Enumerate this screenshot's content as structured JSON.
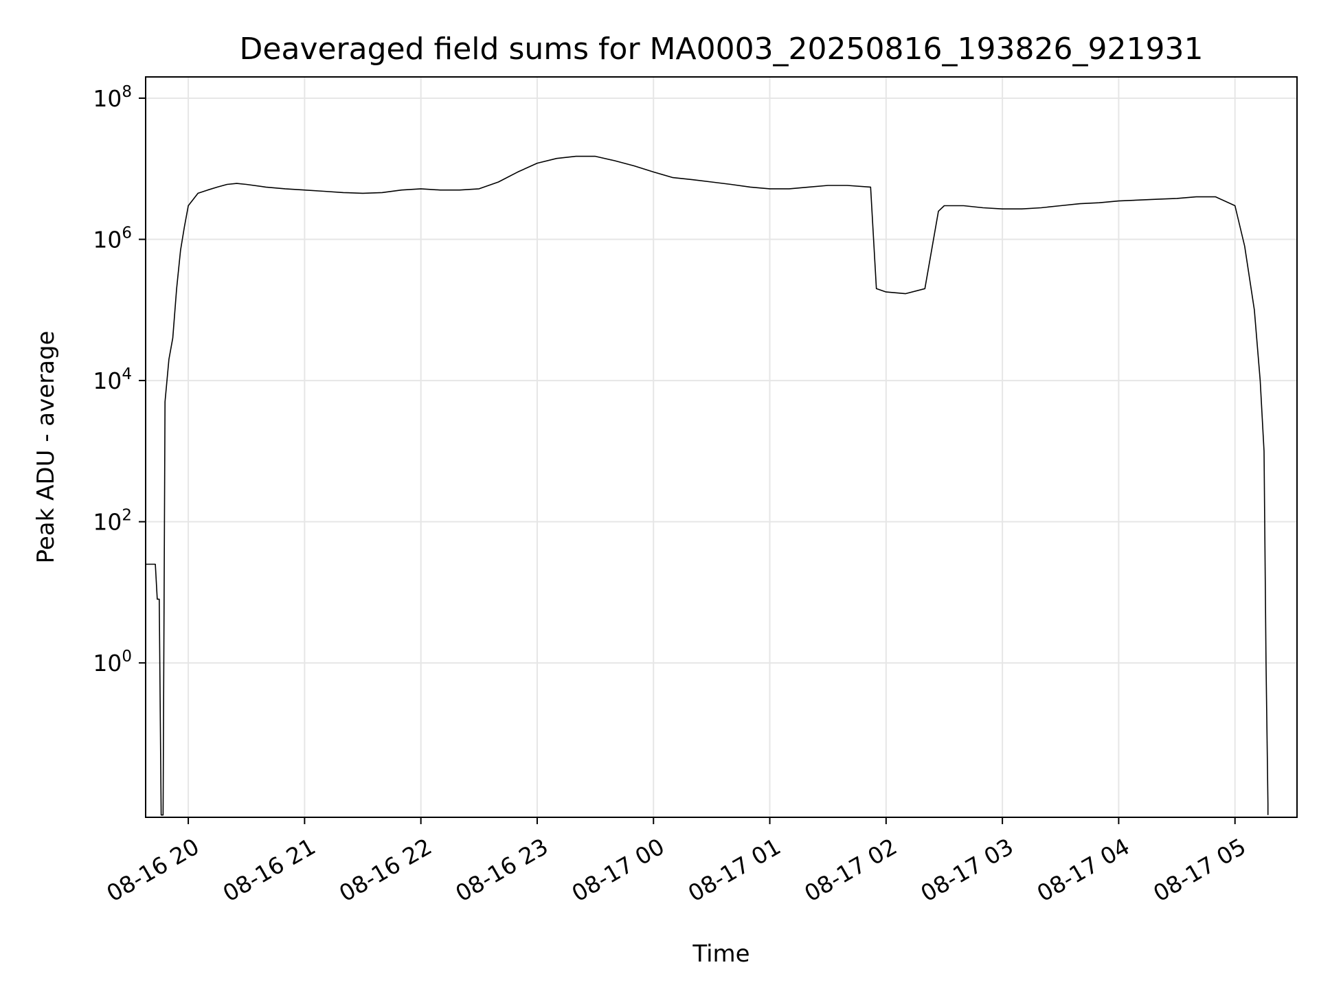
{
  "chart_data": {
    "type": "line",
    "title": "Deaveraged field sums for MA0003_20250816_193826_921931",
    "xlabel": "Time",
    "ylabel": "Peak ADU - average",
    "yscale": "log",
    "ylim": [
      0.0065,
      200000000.0
    ],
    "xlim": [
      "2025-08-16 19:38",
      "2025-08-17 05:32"
    ],
    "grid": true,
    "line_color": "#000000",
    "grid_color": "#e6e6e6",
    "x_ticks": [
      {
        "t": "2025-08-16 20:00",
        "label": "08-16 20"
      },
      {
        "t": "2025-08-16 21:00",
        "label": "08-16 21"
      },
      {
        "t": "2025-08-16 22:00",
        "label": "08-16 22"
      },
      {
        "t": "2025-08-16 23:00",
        "label": "08-16 23"
      },
      {
        "t": "2025-08-17 00:00",
        "label": "08-17 00"
      },
      {
        "t": "2025-08-17 01:00",
        "label": "08-17 01"
      },
      {
        "t": "2025-08-17 02:00",
        "label": "08-17 02"
      },
      {
        "t": "2025-08-17 03:00",
        "label": "08-17 03"
      },
      {
        "t": "2025-08-17 04:00",
        "label": "08-17 04"
      },
      {
        "t": "2025-08-17 05:00",
        "label": "08-17 05"
      }
    ],
    "y_ticks": [
      {
        "value": 1,
        "base": "10",
        "exp": "0"
      },
      {
        "value": 100,
        "base": "10",
        "exp": "2"
      },
      {
        "value": 10000,
        "base": "10",
        "exp": "4"
      },
      {
        "value": 1000000,
        "base": "10",
        "exp": "6"
      },
      {
        "value": 100000000,
        "base": "10",
        "exp": "8"
      }
    ],
    "series": [
      {
        "x": [
          "2025-08-16 19:38",
          "2025-08-16 19:42",
          "2025-08-16 19:43",
          "2025-08-16 19:44",
          "2025-08-16 19:45",
          "2025-08-16 19:46",
          "2025-08-16 19:47",
          "2025-08-16 19:48",
          "2025-08-16 19:50",
          "2025-08-16 19:52",
          "2025-08-16 19:54",
          "2025-08-16 19:56",
          "2025-08-16 19:58",
          "2025-08-16 20:00",
          "2025-08-16 20:05",
          "2025-08-16 20:10",
          "2025-08-16 20:15",
          "2025-08-16 20:20",
          "2025-08-16 20:25",
          "2025-08-16 20:30",
          "2025-08-16 20:40",
          "2025-08-16 20:50",
          "2025-08-16 21:00",
          "2025-08-16 21:10",
          "2025-08-16 21:20",
          "2025-08-16 21:30",
          "2025-08-16 21:40",
          "2025-08-16 21:50",
          "2025-08-16 22:00",
          "2025-08-16 22:10",
          "2025-08-16 22:20",
          "2025-08-16 22:30",
          "2025-08-16 22:40",
          "2025-08-16 22:50",
          "2025-08-16 23:00",
          "2025-08-16 23:10",
          "2025-08-16 23:20",
          "2025-08-16 23:30",
          "2025-08-16 23:40",
          "2025-08-16 23:50",
          "2025-08-17 00:00",
          "2025-08-17 00:10",
          "2025-08-17 00:20",
          "2025-08-17 00:30",
          "2025-08-17 00:40",
          "2025-08-17 00:50",
          "2025-08-17 01:00",
          "2025-08-17 01:10",
          "2025-08-17 01:20",
          "2025-08-17 01:30",
          "2025-08-17 01:40",
          "2025-08-17 01:52",
          "2025-08-17 01:55",
          "2025-08-17 02:00",
          "2025-08-17 02:10",
          "2025-08-17 02:20",
          "2025-08-17 02:27",
          "2025-08-17 02:30",
          "2025-08-17 02:40",
          "2025-08-17 02:50",
          "2025-08-17 03:00",
          "2025-08-17 03:10",
          "2025-08-17 03:20",
          "2025-08-17 03:30",
          "2025-08-17 03:40",
          "2025-08-17 03:50",
          "2025-08-17 04:00",
          "2025-08-17 04:10",
          "2025-08-17 04:20",
          "2025-08-17 04:30",
          "2025-08-17 04:40",
          "2025-08-17 04:50",
          "2025-08-17 05:00",
          "2025-08-17 05:05",
          "2025-08-17 05:10",
          "2025-08-17 05:13",
          "2025-08-17 05:15",
          "2025-08-17 05:16",
          "2025-08-17 05:17",
          "2025-08-17 05:17"
        ],
        "y": [
          25,
          25,
          25,
          8,
          8,
          0.007,
          0.007,
          5000,
          20000,
          40000,
          200000,
          700000,
          1500000,
          3000000,
          4500000,
          5000000,
          5500000,
          6000000,
          6200000,
          6000000,
          5500000,
          5200000,
          5000000,
          4800000,
          4600000,
          4500000,
          4600000,
          5000000,
          5200000,
          5000000,
          5000000,
          5200000,
          6500000,
          9000000,
          12000000,
          14000000,
          15000000,
          15000000,
          13000000,
          11000000,
          9000000,
          7500000,
          7000000,
          6500000,
          6000000,
          5500000,
          5200000,
          5200000,
          5500000,
          5800000,
          5800000,
          5500000,
          200000,
          180000,
          170000,
          200000,
          2500000,
          3000000,
          3000000,
          2800000,
          2700000,
          2700000,
          2800000,
          3000000,
          3200000,
          3300000,
          3500000,
          3600000,
          3700000,
          3800000,
          4000000,
          4000000,
          3000000,
          800000,
          100000,
          10000,
          1000,
          1,
          0.01,
          0.007
        ],
        "name": ""
      }
    ]
  }
}
